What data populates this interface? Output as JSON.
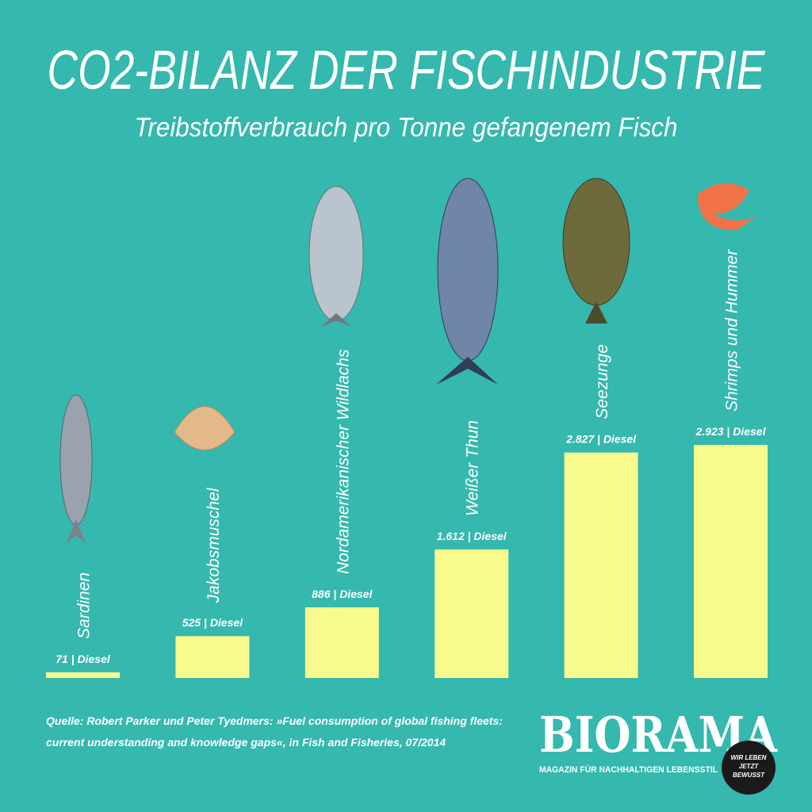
{
  "chart_data": {
    "type": "bar",
    "title": "CO2-BILANZ DER FISCHINDUSTRIE",
    "subtitle": "Treibstoffverbrauch pro Tonne gefangenem Fisch",
    "categories": [
      "Sardinen",
      "Jakobsmuschel",
      "Nordamerikanischer Wildlachs",
      "Weißer Thun",
      "Seezunge",
      "Shrimps und Hummer"
    ],
    "values": [
      71,
      525,
      886,
      1612,
      2827,
      2923
    ],
    "value_labels": [
      "71 | Diesel",
      "525 | Diesel",
      "886 | Diesel",
      "1.612 | Diesel",
      "2.827 | Diesel",
      "2.923 | Diesel"
    ],
    "color": "#f8fa8e"
  },
  "source": [
    "Quelle: Robert Parker und Peter Tyedmers: »Fuel consumption of global fishing fleets:",
    "current understanding and knowledge gaps«, in Fish and Fisheries, 07/2014"
  ],
  "logo": {
    "name": "BIORAMA",
    "tagline": "MAGAZIN FÜR NACHHALTIGEN LEBENSSTIL",
    "badge": [
      "WIR LEBEN",
      "JETZT",
      "BEWUSST"
    ]
  }
}
